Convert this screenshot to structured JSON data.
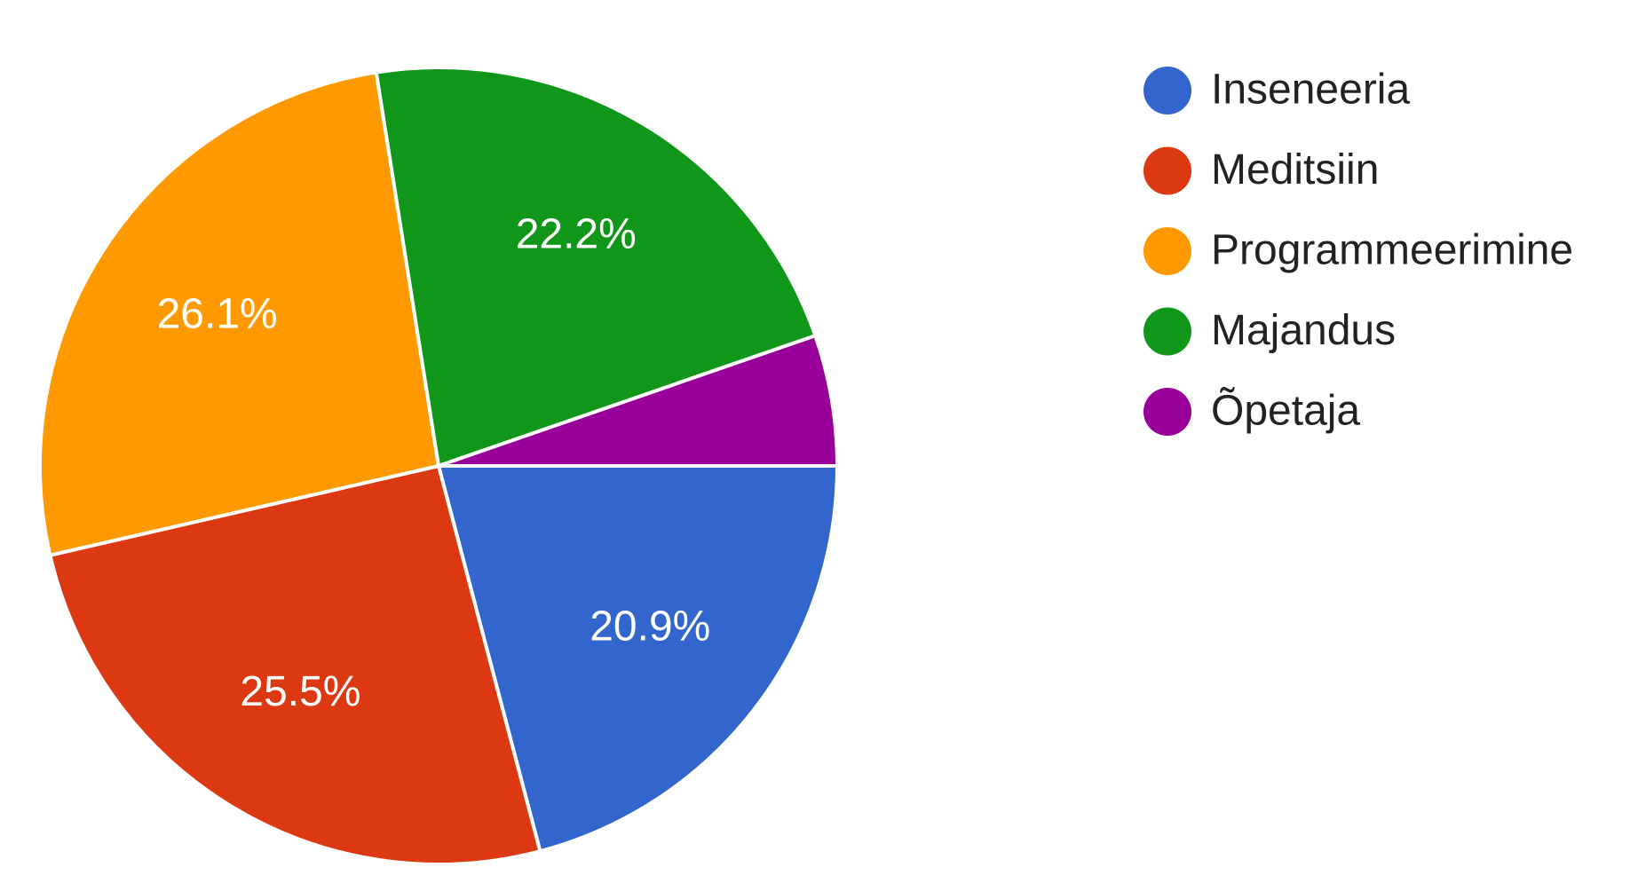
{
  "chart_data": {
    "type": "pie",
    "categories": [
      "Inseneeria",
      "Meditsiin",
      "Programmeerimine",
      "Majandus",
      "Õpetaja"
    ],
    "values": [
      20.9,
      25.5,
      26.1,
      22.2,
      5.3
    ],
    "value_labels": [
      "20.9%",
      "25.5%",
      "26.1%",
      "22.2%",
      null
    ],
    "colors": [
      "#3366cc",
      "#dc3912",
      "#ff9900",
      "#109618",
      "#990099"
    ],
    "legend": "right"
  }
}
